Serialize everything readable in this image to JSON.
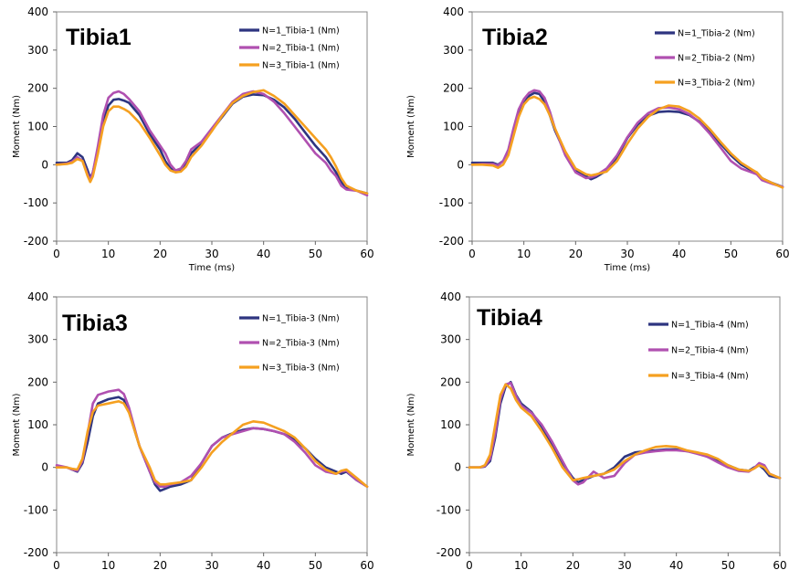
{
  "chart_data": [
    {
      "type": "line",
      "title": "Tibia1",
      "xlabel": "Time (ms)",
      "ylabel": "Moment (Nm)",
      "xlim": [
        0,
        60
      ],
      "ylim": [
        -200,
        400
      ],
      "xticks": [
        "0",
        "10",
        "20",
        "30",
        "40",
        "50",
        "60"
      ],
      "yticks": [
        "-200",
        "-100",
        "0",
        "100",
        "200",
        "300",
        "400"
      ],
      "grid": false,
      "legend": "top-right",
      "series": [
        {
          "name": "N=1_Tibia-1 (Nm)",
          "color": "#2e3580",
          "x": [
            0,
            2,
            3,
            4,
            5,
            6,
            6.5,
            7,
            8,
            9,
            10,
            11,
            12,
            13,
            14,
            16,
            18,
            20,
            21,
            22,
            23,
            24,
            25,
            26,
            28,
            30,
            32,
            34,
            36,
            38,
            40,
            42,
            44,
            46,
            48,
            50,
            52,
            53,
            54,
            55,
            56,
            58,
            60
          ],
          "y": [
            5,
            5,
            12,
            30,
            20,
            -15,
            -35,
            -20,
            40,
            110,
            155,
            170,
            172,
            168,
            162,
            130,
            80,
            40,
            10,
            -10,
            -15,
            -12,
            5,
            30,
            55,
            90,
            125,
            160,
            178,
            184,
            182,
            170,
            150,
            120,
            85,
            50,
            20,
            0,
            -20,
            -45,
            -60,
            -68,
            -75
          ]
        },
        {
          "name": "N=2_Tibia-1 (Nm)",
          "color": "#b050b0",
          "x": [
            0,
            2,
            3,
            4,
            5,
            6,
            6.5,
            7,
            8,
            9,
            10,
            11,
            12,
            13,
            14,
            16,
            18,
            20,
            21,
            22,
            23,
            24,
            25,
            26,
            28,
            30,
            32,
            34,
            36,
            38,
            40,
            42,
            44,
            46,
            48,
            50,
            52,
            53,
            54,
            55,
            56,
            58,
            60
          ],
          "y": [
            0,
            3,
            8,
            20,
            10,
            -25,
            -40,
            -20,
            50,
            130,
            175,
            188,
            192,
            185,
            172,
            140,
            90,
            50,
            30,
            0,
            -15,
            -10,
            10,
            40,
            60,
            95,
            130,
            165,
            185,
            192,
            185,
            165,
            135,
            100,
            65,
            30,
            5,
            -15,
            -30,
            -55,
            -65,
            -68,
            -80
          ]
        },
        {
          "name": "N=3_Tibia-1 (Nm)",
          "color": "#f5a020",
          "x": [
            0,
            2,
            3,
            4,
            5,
            6,
            6.5,
            7,
            8,
            9,
            10,
            11,
            12,
            13,
            14,
            16,
            18,
            20,
            21,
            22,
            23,
            24,
            25,
            26,
            28,
            30,
            32,
            34,
            36,
            38,
            40,
            42,
            44,
            46,
            48,
            50,
            52,
            53,
            54,
            55,
            56,
            58,
            60
          ],
          "y": [
            0,
            2,
            5,
            15,
            10,
            -30,
            -45,
            -30,
            30,
            100,
            140,
            152,
            152,
            146,
            138,
            110,
            70,
            25,
            0,
            -15,
            -20,
            -18,
            -5,
            20,
            50,
            88,
            128,
            162,
            180,
            190,
            195,
            180,
            160,
            130,
            100,
            70,
            40,
            20,
            -5,
            -35,
            -55,
            -68,
            -75
          ]
        }
      ]
    },
    {
      "type": "line",
      "title": "Tibia2",
      "xlabel": "Time (ms)",
      "ylabel": "Moment (Nm)",
      "xlim": [
        0,
        60
      ],
      "ylim": [
        -200,
        400
      ],
      "xticks": [
        "0",
        "10",
        "20",
        "30",
        "40",
        "50",
        "60"
      ],
      "yticks": [
        "-200",
        "-100",
        "0",
        "100",
        "200",
        "300",
        "400"
      ],
      "grid": false,
      "legend": "top-right",
      "series": [
        {
          "name": "N=1_Tibia-2 (Nm)",
          "color": "#2e3580",
          "x": [
            0,
            2,
            4,
            5,
            6,
            7,
            8,
            9,
            10,
            11,
            12,
            13,
            14,
            15,
            16,
            18,
            20,
            22,
            23,
            24,
            26,
            28,
            30,
            32,
            34,
            36,
            38,
            40,
            42,
            44,
            46,
            48,
            50,
            52,
            54,
            55,
            56,
            58,
            60
          ],
          "y": [
            5,
            5,
            5,
            0,
            10,
            35,
            80,
            130,
            160,
            180,
            188,
            185,
            165,
            130,
            90,
            30,
            -15,
            -30,
            -38,
            -32,
            -15,
            20,
            70,
            105,
            128,
            138,
            140,
            138,
            130,
            112,
            85,
            55,
            25,
            0,
            -15,
            -20,
            -35,
            -48,
            -58
          ]
        },
        {
          "name": "N=2_Tibia-2 (Nm)",
          "color": "#b050b0",
          "x": [
            0,
            2,
            4,
            5,
            6,
            7,
            8,
            9,
            10,
            11,
            12,
            13,
            14,
            15,
            16,
            18,
            20,
            22,
            23,
            24,
            26,
            28,
            30,
            32,
            34,
            36,
            38,
            40,
            42,
            44,
            46,
            48,
            50,
            52,
            54,
            55,
            56,
            58,
            60
          ],
          "y": [
            0,
            2,
            2,
            -2,
            10,
            40,
            95,
            145,
            172,
            188,
            195,
            192,
            175,
            140,
            95,
            25,
            -20,
            -35,
            -33,
            -28,
            -10,
            25,
            72,
            110,
            135,
            148,
            150,
            145,
            132,
            110,
            80,
            45,
            10,
            -10,
            -20,
            -25,
            -40,
            -50,
            -58
          ]
        },
        {
          "name": "N=3_Tibia-2 (Nm)",
          "color": "#f5a020",
          "x": [
            0,
            2,
            4,
            5,
            6,
            7,
            8,
            9,
            10,
            11,
            12,
            13,
            14,
            15,
            16,
            18,
            20,
            22,
            23,
            24,
            26,
            28,
            30,
            32,
            34,
            36,
            38,
            40,
            42,
            44,
            46,
            48,
            50,
            52,
            54,
            55,
            56,
            58,
            60
          ],
          "y": [
            0,
            0,
            -2,
            -8,
            0,
            25,
            75,
            125,
            158,
            173,
            178,
            172,
            158,
            130,
            95,
            35,
            -10,
            -25,
            -28,
            -25,
            -18,
            10,
            55,
            95,
            125,
            145,
            155,
            152,
            140,
            120,
            92,
            60,
            30,
            5,
            -12,
            -20,
            -35,
            -48,
            -60
          ]
        }
      ]
    },
    {
      "type": "line",
      "title": "Tibia3",
      "xlabel": "Time (ms)",
      "ylabel": "Moment (Nm)",
      "xlim": [
        0,
        60
      ],
      "ylim": [
        -200,
        400
      ],
      "xticks": [
        "0",
        "10",
        "20",
        "30",
        "40",
        "50",
        "60"
      ],
      "yticks": [
        "-200",
        "-100",
        "0",
        "100",
        "200",
        "300",
        "400"
      ],
      "grid": false,
      "legend": "top-right",
      "series": [
        {
          "name": "N=1_Tibia-3 (Nm)",
          "color": "#2e3580",
          "x": [
            0,
            2,
            3,
            4,
            5,
            6,
            7,
            8,
            10,
            12,
            13,
            14,
            15,
            16,
            18,
            19,
            20,
            21,
            22,
            24,
            26,
            28,
            30,
            32,
            34,
            36,
            38,
            40,
            42,
            44,
            46,
            48,
            50,
            52,
            54,
            55,
            56,
            58,
            60
          ],
          "y": [
            0,
            0,
            -5,
            -10,
            10,
            60,
            120,
            150,
            160,
            165,
            158,
            130,
            90,
            50,
            -10,
            -40,
            -55,
            -50,
            -45,
            -40,
            -30,
            10,
            50,
            70,
            80,
            88,
            92,
            90,
            85,
            78,
            65,
            45,
            20,
            0,
            -10,
            -15,
            -10,
            -30,
            -45
          ]
        },
        {
          "name": "N=2_Tibia-3 (Nm)",
          "color": "#b050b0",
          "x": [
            0,
            2,
            3,
            4,
            5,
            6,
            7,
            8,
            10,
            12,
            13,
            14,
            15,
            16,
            18,
            19,
            20,
            21,
            22,
            24,
            26,
            28,
            30,
            32,
            34,
            36,
            38,
            40,
            42,
            44,
            46,
            48,
            50,
            52,
            54,
            55,
            56,
            58,
            60
          ],
          "y": [
            5,
            0,
            -5,
            -8,
            15,
            80,
            150,
            170,
            178,
            182,
            172,
            140,
            95,
            50,
            -10,
            -35,
            -45,
            -45,
            -40,
            -35,
            -20,
            10,
            50,
            70,
            78,
            85,
            92,
            90,
            85,
            78,
            60,
            35,
            5,
            -10,
            -15,
            -10,
            -8,
            -30,
            -45
          ]
        },
        {
          "name": "N=3_Tibia-3 (Nm)",
          "color": "#f5a020",
          "x": [
            0,
            2,
            3,
            4,
            5,
            6,
            7,
            8,
            10,
            12,
            13,
            14,
            15,
            16,
            18,
            19,
            20,
            21,
            22,
            24,
            26,
            28,
            30,
            32,
            34,
            36,
            38,
            40,
            42,
            44,
            46,
            48,
            50,
            52,
            54,
            55,
            56,
            58,
            60
          ],
          "y": [
            0,
            0,
            -3,
            -5,
            20,
            85,
            130,
            145,
            150,
            155,
            150,
            128,
            90,
            50,
            0,
            -30,
            -40,
            -40,
            -38,
            -35,
            -30,
            0,
            35,
            60,
            80,
            100,
            108,
            105,
            95,
            85,
            70,
            45,
            15,
            -5,
            -15,
            -8,
            -5,
            -25,
            -45
          ]
        }
      ]
    },
    {
      "type": "line",
      "title": "Tibia4",
      "xlabel": "Time (ms)",
      "ylabel": "Moment (Nm)",
      "xlim": [
        0,
        60
      ],
      "ylim": [
        -200,
        400
      ],
      "xticks": [
        "0",
        "10",
        "20",
        "30",
        "40",
        "50",
        "60"
      ],
      "yticks": [
        "-200",
        "-100",
        "0",
        "100",
        "200",
        "300",
        "400"
      ],
      "grid": false,
      "legend": "top-right",
      "series": [
        {
          "name": "N=1_Tibia-4 (Nm)",
          "color": "#2e3580",
          "x": [
            0,
            2,
            3,
            4,
            5,
            6,
            7,
            8,
            9,
            10,
            12,
            14,
            16,
            18,
            20,
            21,
            22,
            24,
            26,
            28,
            30,
            32,
            34,
            36,
            38,
            40,
            42,
            44,
            46,
            48,
            50,
            52,
            54,
            55,
            56,
            57,
            58,
            60
          ],
          "y": [
            0,
            0,
            2,
            15,
            70,
            150,
            190,
            200,
            170,
            150,
            130,
            95,
            50,
            10,
            -25,
            -35,
            -30,
            -20,
            -15,
            0,
            25,
            35,
            38,
            40,
            42,
            42,
            38,
            35,
            25,
            15,
            5,
            -5,
            -8,
            0,
            5,
            -5,
            -20,
            -25
          ]
        },
        {
          "name": "N=2_Tibia-4 (Nm)",
          "color": "#b050b0",
          "x": [
            0,
            2,
            3,
            4,
            5,
            6,
            7,
            8,
            9,
            10,
            12,
            14,
            16,
            18,
            20,
            21,
            22,
            24,
            26,
            28,
            30,
            32,
            34,
            36,
            38,
            40,
            42,
            44,
            46,
            48,
            50,
            52,
            54,
            55,
            56,
            57,
            58,
            60
          ],
          "y": [
            0,
            0,
            3,
            20,
            80,
            160,
            195,
            198,
            168,
            145,
            128,
            100,
            60,
            15,
            -30,
            -40,
            -35,
            -10,
            -25,
            -20,
            10,
            30,
            35,
            38,
            40,
            40,
            38,
            32,
            25,
            12,
            0,
            -8,
            -10,
            -2,
            10,
            5,
            -15,
            -25
          ]
        },
        {
          "name": "N=3_Tibia-4 (Nm)",
          "color": "#f5a020",
          "x": [
            0,
            2,
            3,
            4,
            5,
            6,
            7,
            8,
            9,
            10,
            12,
            14,
            16,
            18,
            20,
            21,
            22,
            24,
            26,
            28,
            30,
            32,
            34,
            36,
            38,
            40,
            42,
            44,
            46,
            48,
            50,
            52,
            54,
            55,
            56,
            57,
            58,
            60
          ],
          "y": [
            0,
            0,
            5,
            30,
            100,
            170,
            195,
            185,
            158,
            140,
            120,
            85,
            45,
            0,
            -30,
            -28,
            -25,
            -20,
            -15,
            -5,
            15,
            30,
            40,
            48,
            50,
            48,
            40,
            35,
            30,
            20,
            5,
            -5,
            -8,
            -3,
            5,
            0,
            -15,
            -25
          ]
        }
      ]
    }
  ]
}
